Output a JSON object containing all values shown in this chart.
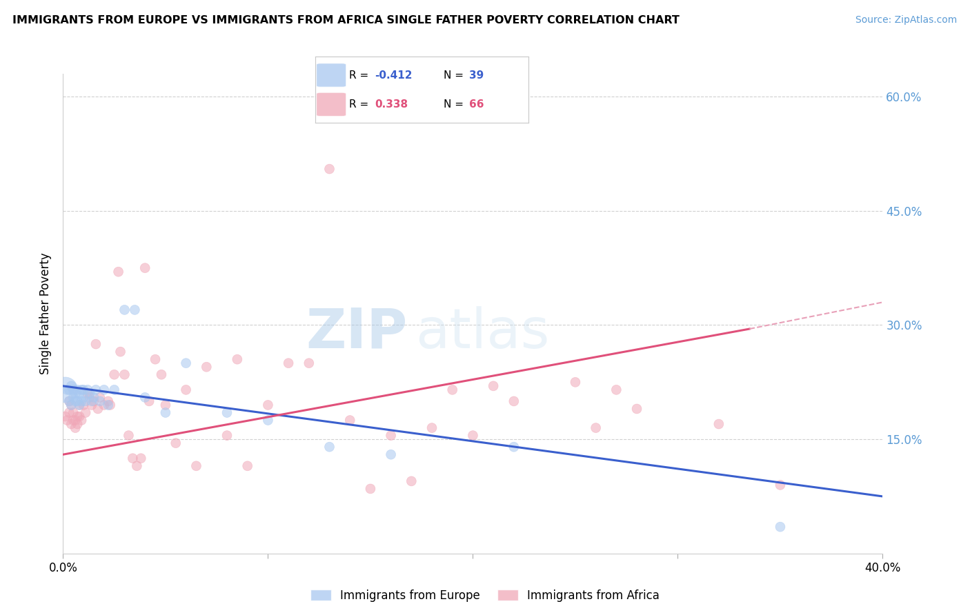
{
  "title": "IMMIGRANTS FROM EUROPE VS IMMIGRANTS FROM AFRICA SINGLE FATHER POVERTY CORRELATION CHART",
  "source": "Source: ZipAtlas.com",
  "ylabel": "Single Father Poverty",
  "legend_europe": "Immigrants from Europe",
  "legend_africa": "Immigrants from Africa",
  "R_europe": -0.412,
  "N_europe": 39,
  "R_africa": 0.338,
  "N_africa": 66,
  "color_europe": "#a8c8f0",
  "color_africa": "#f0a8b8",
  "trendline_europe": "#3a5fcd",
  "trendline_africa": "#e0507a",
  "trendline_africa_ext": "#e8a0b8",
  "background": "#ffffff",
  "xlim": [
    0.0,
    0.4
  ],
  "ylim": [
    0.0,
    0.63
  ],
  "europe_x": [
    0.001,
    0.002,
    0.003,
    0.003,
    0.004,
    0.004,
    0.005,
    0.005,
    0.006,
    0.006,
    0.007,
    0.007,
    0.008,
    0.008,
    0.009,
    0.009,
    0.01,
    0.01,
    0.011,
    0.012,
    0.013,
    0.014,
    0.015,
    0.016,
    0.018,
    0.02,
    0.022,
    0.025,
    0.03,
    0.035,
    0.04,
    0.05,
    0.06,
    0.08,
    0.1,
    0.13,
    0.16,
    0.22,
    0.35
  ],
  "europe_y": [
    0.215,
    0.215,
    0.215,
    0.2,
    0.22,
    0.195,
    0.215,
    0.205,
    0.21,
    0.2,
    0.215,
    0.2,
    0.21,
    0.195,
    0.215,
    0.2,
    0.215,
    0.205,
    0.2,
    0.215,
    0.21,
    0.2,
    0.205,
    0.215,
    0.2,
    0.215,
    0.195,
    0.215,
    0.32,
    0.32,
    0.205,
    0.185,
    0.25,
    0.185,
    0.175,
    0.14,
    0.13,
    0.14,
    0.035
  ],
  "europe_size": [
    700,
    100,
    100,
    100,
    100,
    100,
    100,
    100,
    100,
    100,
    100,
    100,
    100,
    100,
    100,
    100,
    100,
    100,
    100,
    100,
    100,
    100,
    100,
    100,
    100,
    100,
    100,
    100,
    100,
    100,
    100,
    100,
    100,
    100,
    100,
    100,
    100,
    100,
    100
  ],
  "africa_x": [
    0.001,
    0.002,
    0.003,
    0.003,
    0.004,
    0.004,
    0.005,
    0.005,
    0.006,
    0.006,
    0.007,
    0.007,
    0.008,
    0.008,
    0.009,
    0.01,
    0.011,
    0.012,
    0.013,
    0.014,
    0.015,
    0.016,
    0.017,
    0.018,
    0.02,
    0.022,
    0.023,
    0.025,
    0.027,
    0.028,
    0.03,
    0.032,
    0.034,
    0.036,
    0.038,
    0.04,
    0.042,
    0.045,
    0.048,
    0.05,
    0.055,
    0.06,
    0.065,
    0.07,
    0.08,
    0.085,
    0.09,
    0.1,
    0.11,
    0.12,
    0.13,
    0.14,
    0.15,
    0.16,
    0.17,
    0.18,
    0.19,
    0.2,
    0.21,
    0.22,
    0.25,
    0.26,
    0.27,
    0.28,
    0.32,
    0.35
  ],
  "africa_y": [
    0.18,
    0.175,
    0.185,
    0.2,
    0.195,
    0.17,
    0.185,
    0.175,
    0.175,
    0.165,
    0.18,
    0.17,
    0.195,
    0.18,
    0.175,
    0.195,
    0.185,
    0.21,
    0.205,
    0.195,
    0.2,
    0.275,
    0.19,
    0.205,
    0.195,
    0.2,
    0.195,
    0.235,
    0.37,
    0.265,
    0.235,
    0.155,
    0.125,
    0.115,
    0.125,
    0.375,
    0.2,
    0.255,
    0.235,
    0.195,
    0.145,
    0.215,
    0.115,
    0.245,
    0.155,
    0.255,
    0.115,
    0.195,
    0.25,
    0.25,
    0.505,
    0.175,
    0.085,
    0.155,
    0.095,
    0.165,
    0.215,
    0.155,
    0.22,
    0.2,
    0.225,
    0.165,
    0.215,
    0.19,
    0.17,
    0.09
  ],
  "africa_size": [
    100,
    100,
    100,
    100,
    100,
    100,
    100,
    100,
    100,
    100,
    100,
    100,
    100,
    100,
    100,
    100,
    100,
    100,
    100,
    100,
    100,
    100,
    100,
    100,
    100,
    100,
    100,
    100,
    100,
    100,
    100,
    100,
    100,
    100,
    100,
    100,
    100,
    100,
    100,
    100,
    100,
    100,
    100,
    100,
    100,
    100,
    100,
    100,
    100,
    100,
    100,
    100,
    100,
    100,
    100,
    100,
    100,
    100,
    100,
    100,
    100,
    100,
    100,
    100,
    100,
    100
  ]
}
